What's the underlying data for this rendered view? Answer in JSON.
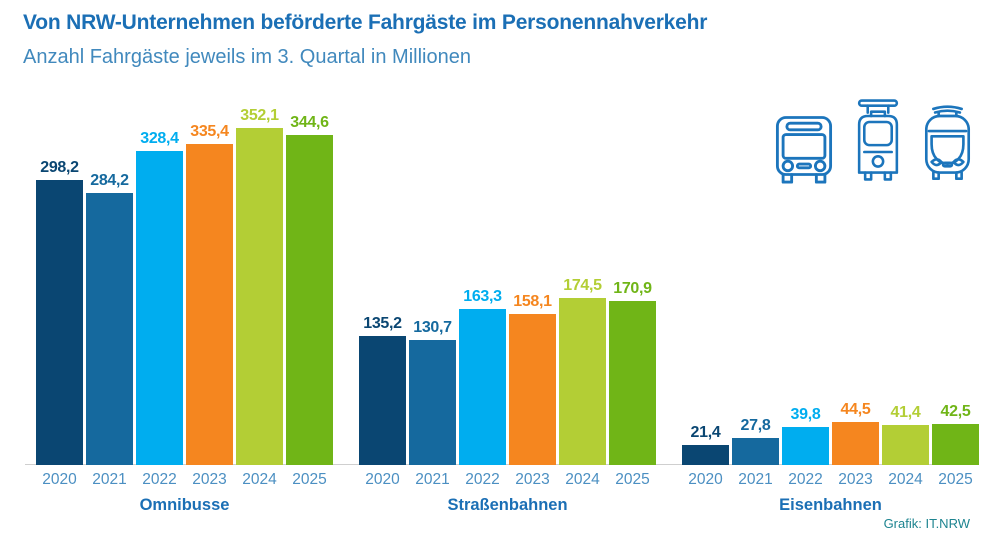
{
  "header": {
    "title": "Von NRW-Unternehmen beförderte Fahrgäste im Personennahverkehr",
    "subtitle": "Anzahl Fahrgäste jeweils im 3. Quartal in Millionen"
  },
  "footer": {
    "credit": "Grafik: IT.NRW"
  },
  "icons": [
    {
      "name": "bus-icon"
    },
    {
      "name": "tram-icon"
    },
    {
      "name": "train-icon"
    }
  ],
  "colors": {
    "title": "#1B6FB5",
    "subtitle": "#4189BD",
    "year_label": "#4B8FC2",
    "group_label": "#1B6FB5",
    "credit": "#1D8490",
    "icon_stroke": "#1C75BC",
    "baseline": "#CFCFCF",
    "year_colors": [
      "#0A4672",
      "#15699E",
      "#00ADEF",
      "#F5861F",
      "#B3CE35",
      "#70B517"
    ]
  },
  "chart_data": {
    "type": "bar",
    "title": "Von NRW-Unternehmen beförderte Fahrgäste im Personennahverkehr",
    "subtitle": "Anzahl Fahrgäste jeweils im 3. Quartal in Millionen",
    "unit": "Millionen Fahrgäste",
    "categories": [
      "2020",
      "2021",
      "2022",
      "2023",
      "2024",
      "2025"
    ],
    "groups": [
      {
        "label": "Omnibusse",
        "values": [
          298.2,
          284.2,
          328.4,
          335.4,
          352.1,
          344.6
        ],
        "display_values": [
          "298,2",
          "284,2",
          "328,4",
          "335,4",
          "352,1",
          "344,6"
        ]
      },
      {
        "label": "Straßenbahnen",
        "values": [
          135.2,
          130.7,
          163.3,
          158.1,
          174.5,
          170.9
        ],
        "display_values": [
          "135,2",
          "130,7",
          "163,3",
          "158,1",
          "174,5",
          "170,9"
        ]
      },
      {
        "label": "Eisenbahnen",
        "values": [
          21.4,
          27.8,
          39.8,
          44.5,
          41.4,
          42.5
        ],
        "display_values": [
          "21,4",
          "27,8",
          "39,8",
          "44,5",
          "41,4",
          "42,5"
        ]
      }
    ],
    "ylim": [
      0,
      360
    ],
    "grid": false,
    "legend_position": "none",
    "value_labels": "above-bars, colored like bars, German decimal comma"
  }
}
